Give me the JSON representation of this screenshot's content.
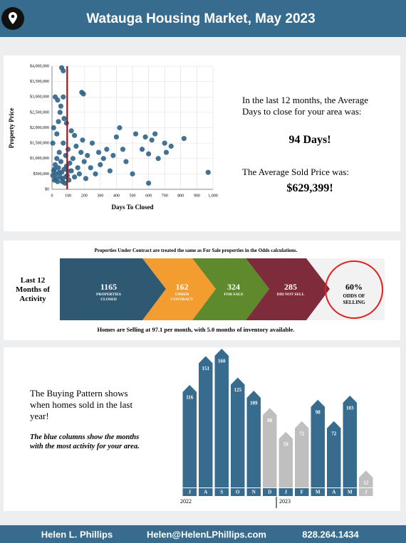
{
  "header": {
    "title": "Watauga Housing Market, May 2023"
  },
  "chart_data": [
    {
      "type": "scatter",
      "x_label": "Days To Closed",
      "y_label": "Property Price",
      "color": "#2f6487",
      "x": [
        5,
        10,
        15,
        20,
        25,
        30,
        35,
        40,
        45,
        50,
        55,
        60,
        65,
        70,
        75,
        80,
        85,
        90,
        95,
        100,
        105,
        110,
        120,
        130,
        140,
        150,
        160,
        170,
        180,
        190,
        200,
        210,
        220,
        240,
        250,
        270,
        290,
        300,
        320,
        340,
        360,
        380,
        400,
        420,
        440,
        460,
        500,
        520,
        560,
        580,
        600,
        620,
        640,
        660,
        700,
        710,
        740,
        820,
        970,
        600,
        30,
        40,
        50,
        35,
        55,
        70,
        75,
        60,
        70,
        185,
        195,
        90,
        120,
        140,
        20,
        10,
        5,
        15,
        25,
        45,
        65,
        85,
        100
      ],
      "y": [
        450000,
        600000,
        300000,
        800000,
        500000,
        1000000,
        250000,
        700000,
        1200000,
        400000,
        900000,
        550000,
        350000,
        1500000,
        650000,
        200000,
        1100000,
        750000,
        450000,
        1300000,
        300000,
        850000,
        600000,
        1000000,
        400000,
        1400000,
        700000,
        500000,
        1200000,
        1600000,
        900000,
        350000,
        1100000,
        700000,
        1500000,
        500000,
        1200000,
        800000,
        1000000,
        1300000,
        600000,
        1100000,
        1700000,
        2000000,
        1300000,
        900000,
        500000,
        1800000,
        1300000,
        1700000,
        1150000,
        1600000,
        1800000,
        1000000,
        1500000,
        1200000,
        1400000,
        1650000,
        550000,
        200000,
        1800000,
        2200000,
        2500000,
        2900000,
        2700000,
        3000000,
        2300000,
        3950000,
        3850000,
        3150000,
        3100000,
        2150000,
        1900000,
        1750000,
        3000000,
        2000000,
        1500000,
        650000,
        350000,
        550000,
        250000,
        400000,
        600000
      ],
      "reference_x": 94,
      "reference_color": "#c00000",
      "xlim": [
        0,
        1000
      ],
      "xticks": [
        0,
        100,
        200,
        300,
        400,
        500,
        600,
        700,
        800,
        900,
        {
          "value": 1000,
          "label": "1,000"
        }
      ],
      "ylim": [
        0,
        4000000
      ],
      "yticks": [
        {
          "value": 0,
          "label": "$0"
        },
        {
          "value": 500000,
          "label": "$500,000"
        },
        {
          "value": 1000000,
          "label": "$1,000,000"
        },
        {
          "value": 1500000,
          "label": "$1,500,000"
        },
        {
          "value": 2000000,
          "label": "$2,000,000"
        },
        {
          "value": 2500000,
          "label": "$2,500,000"
        },
        {
          "value": 3000000,
          "label": "$3,000,000"
        },
        {
          "value": 3500000,
          "label": "$3,500,000"
        },
        {
          "value": 4000000,
          "label": "$4,000,000"
        }
      ],
      "grid": true
    },
    {
      "type": "bar",
      "categories": [
        "J",
        "A",
        "S",
        "O",
        "N",
        "D",
        "J",
        "F",
        "M",
        "A",
        "M",
        "J"
      ],
      "values": [
        116,
        151,
        160,
        125,
        109,
        88,
        59,
        72,
        98,
        72,
        103,
        12
      ],
      "colors": [
        "#376c8f",
        "#376c8f",
        "#376c8f",
        "#376c8f",
        "#376c8f",
        "#bfbfbf",
        "#bfbfbf",
        "#bfbfbf",
        "#376c8f",
        "#376c8f",
        "#376c8f",
        "#bfbfbf"
      ],
      "years": [
        "2022",
        "2023"
      ]
    }
  ],
  "stats": {
    "days_intro": "In the last 12 months, the Average Days to close for your area was:",
    "days": "94 Days!",
    "price_intro": "The Average Sold Price was:",
    "price": "$629,399!"
  },
  "activity": {
    "note": "Properties Under Contract are treated the same as For Sale properties in the Odds calculations.",
    "heading": "Last 12 Months of Activity",
    "stages": [
      {
        "value": "1165",
        "label": "PROPERTIES CLOSED",
        "color": "#2f5872"
      },
      {
        "value": "162",
        "label": "UNDER CONTRACT",
        "color": "#f39c2f"
      },
      {
        "value": "324",
        "label": "FOR SALE",
        "color": "#5e8a2d"
      },
      {
        "value": "285",
        "label": "DID NOT SELL",
        "color": "#7e2c3c"
      }
    ],
    "odds": "60%",
    "odds_label": "ODDS OF SELLING",
    "summary": "Homes are Selling at 97.1 per month, with 5.0 months of inventory available."
  },
  "pattern": {
    "text": "The Buying Pattern shows when homes sold in the last year!",
    "note": "The blue columns show the months with the most activity for your area."
  },
  "footer": {
    "name": "Helen L. Phillips",
    "email": "Helen@HelenLPhillips.com",
    "phone": "828.264.1434"
  }
}
